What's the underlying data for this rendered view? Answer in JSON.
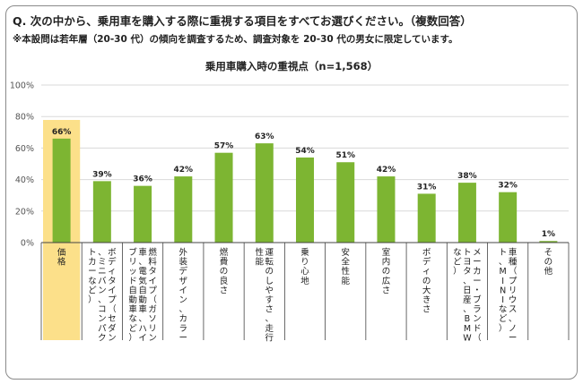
{
  "question": "Q. 次の中から、乗用車を購入する際に重視する項目をすべてお選びください。（複数回答）",
  "note": "※本設問は若年層（20-30 代）の傾向を調査するため、調査対象を 20-30 代の男女に限定しています。",
  "colors": {
    "bar": "#7db532",
    "highlight": "#fce08a",
    "grid": "#d9d9d9",
    "axis": "#444444",
    "frame": "#8a8a8a"
  },
  "chart_data": {
    "type": "bar",
    "title": "乗用車購入時の重視点（n=1,568）",
    "ylim": [
      0,
      100
    ],
    "yticks": [
      "0%",
      "20%",
      "40%",
      "60%",
      "80%",
      "100%"
    ],
    "highlighted_category": "価格",
    "categories": [
      "価格",
      "ボディタイプ（セダン、ミニバン、コンパクトカーなど）",
      "燃料タイプ（ガソリン車、電気自動車、ハイブリッド自動車など）",
      "外装デザイン、カラー",
      "燃費の良さ",
      "運転のしやすさ、走行性能",
      "乗り心地",
      "安全性能",
      "室内の広さ",
      "ボディの大きさ",
      "メーカー・ブランド（トヨタ、日産、BMWなど）",
      "車種（プリウス、ノート、MINIなど）",
      "その他"
    ],
    "values": [
      66,
      39,
      36,
      42,
      57,
      63,
      54,
      51,
      42,
      31,
      38,
      32,
      1
    ],
    "value_labels": [
      "66%",
      "39%",
      "36%",
      "42%",
      "57%",
      "63%",
      "54%",
      "51%",
      "42%",
      "31%",
      "38%",
      "32%",
      "1%"
    ],
    "grid": true
  }
}
